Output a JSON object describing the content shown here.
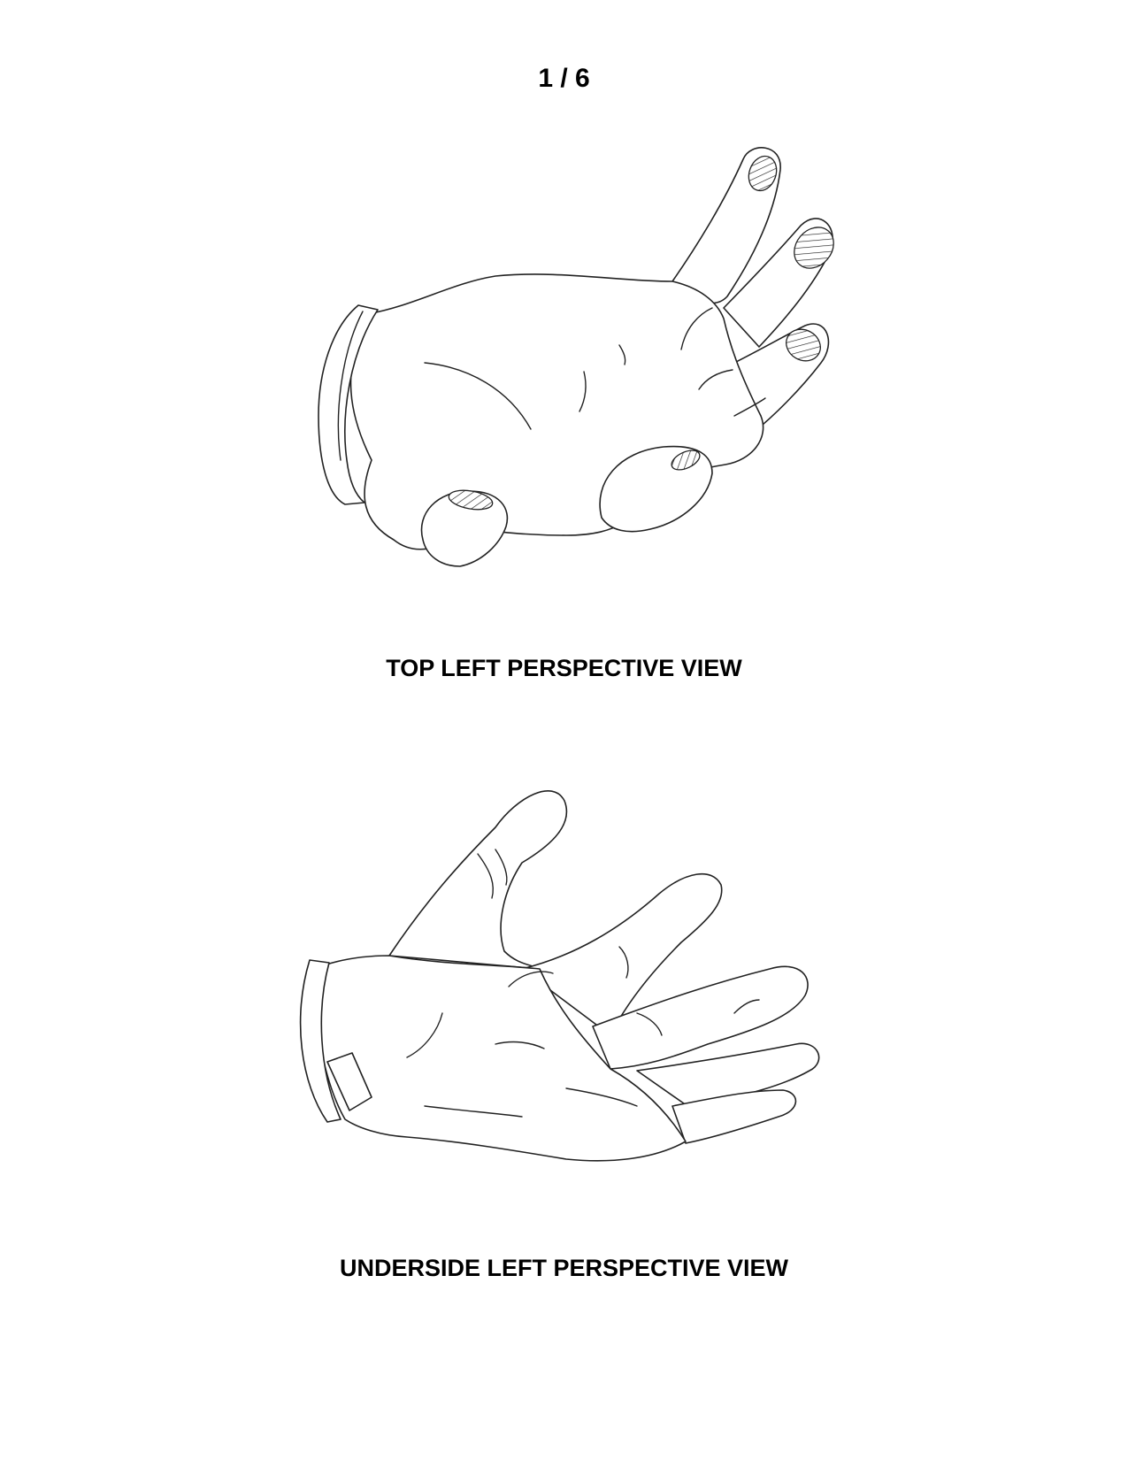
{
  "page": {
    "sheet_number": "1 / 6"
  },
  "figures": [
    {
      "caption": "TOP LEFT PERSPECTIVE VIEW"
    },
    {
      "caption": "UNDERSIDE LEFT PERSPECTIVE VIEW"
    }
  ]
}
